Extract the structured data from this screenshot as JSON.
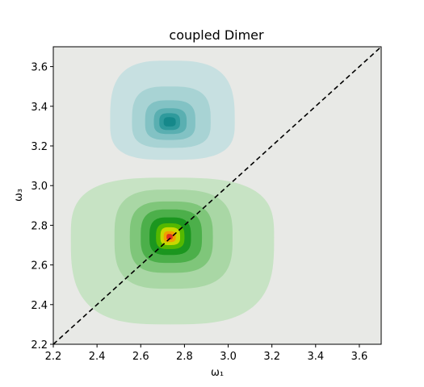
{
  "chart_data": {
    "type": "contour",
    "title": "coupled Dimer",
    "xlabel": "ω₁",
    "ylabel": "ω₃",
    "xlim": [
      2.2,
      3.7
    ],
    "ylim": [
      2.2,
      3.7
    ],
    "xticks": [
      2.2,
      2.4,
      2.6,
      2.8,
      3.0,
      3.2,
      3.4,
      3.6
    ],
    "yticks": [
      2.2,
      2.4,
      2.6,
      2.8,
      3.0,
      3.2,
      3.4,
      3.6
    ],
    "xtick_labels": [
      "2.2",
      "2.4",
      "2.6",
      "2.8",
      "3.0",
      "3.2",
      "3.4",
      "3.6"
    ],
    "ytick_labels": [
      "2.2",
      "2.4",
      "2.6",
      "2.8",
      "3.0",
      "3.2",
      "3.4",
      "3.6"
    ],
    "background_color": "#e8e9e6",
    "diagonal": {
      "style": "dashed",
      "color": "#000000",
      "from": [
        2.2,
        2.2
      ],
      "to": [
        3.7,
        3.7
      ]
    },
    "peaks": [
      {
        "center": [
          2.73,
          2.74
        ],
        "levels": [
          {
            "dx_left": 0.45,
            "dx_right": 0.48,
            "dy_down": 0.44,
            "dy_up": 0.3,
            "color": "#c7e3c4"
          },
          {
            "dx_left": 0.25,
            "dx_right": 0.29,
            "dy_down": 0.26,
            "dy_up": 0.24,
            "color": "#a9d7a5"
          },
          {
            "dx_left": 0.18,
            "dx_right": 0.2,
            "dy_down": 0.18,
            "dy_up": 0.18,
            "color": "#7fc67a"
          },
          {
            "dx_left": 0.13,
            "dx_right": 0.15,
            "dy_down": 0.13,
            "dy_up": 0.14,
            "color": "#4caf4a"
          },
          {
            "dx_left": 0.09,
            "dx_right": 0.1,
            "dy_down": 0.09,
            "dy_up": 0.1,
            "color": "#1b961f"
          },
          {
            "dx_left": 0.06,
            "dx_right": 0.07,
            "dy_down": 0.06,
            "dy_up": 0.07,
            "color": "#55b800"
          },
          {
            "dx_left": 0.04,
            "dx_right": 0.05,
            "dy_down": 0.04,
            "dy_up": 0.05,
            "color": "#c8d800"
          },
          {
            "dx_left": 0.025,
            "dx_right": 0.03,
            "dy_down": 0.025,
            "dy_up": 0.03,
            "color": "#f0a000"
          },
          {
            "dx_left": 0.012,
            "dx_right": 0.016,
            "dy_down": 0.012,
            "dy_up": 0.016,
            "color": "#e03020"
          }
        ]
      },
      {
        "center": [
          2.73,
          3.32
        ],
        "levels": [
          {
            "dx_left": 0.27,
            "dx_right": 0.3,
            "dy_down": 0.19,
            "dy_up": 0.31,
            "color": "#c7e0e1"
          },
          {
            "dx_left": 0.17,
            "dx_right": 0.19,
            "dy_down": 0.13,
            "dy_up": 0.18,
            "color": "#a8d3d4"
          },
          {
            "dx_left": 0.11,
            "dx_right": 0.12,
            "dy_down": 0.09,
            "dy_up": 0.11,
            "color": "#82c2c4"
          },
          {
            "dx_left": 0.07,
            "dx_right": 0.08,
            "dy_down": 0.06,
            "dy_up": 0.07,
            "color": "#5aafb1"
          },
          {
            "dx_left": 0.045,
            "dx_right": 0.05,
            "dy_down": 0.04,
            "dy_up": 0.045,
            "color": "#2f9a9c"
          },
          {
            "dx_left": 0.025,
            "dx_right": 0.03,
            "dy_down": 0.022,
            "dy_up": 0.025,
            "color": "#15888a"
          }
        ]
      }
    ]
  }
}
